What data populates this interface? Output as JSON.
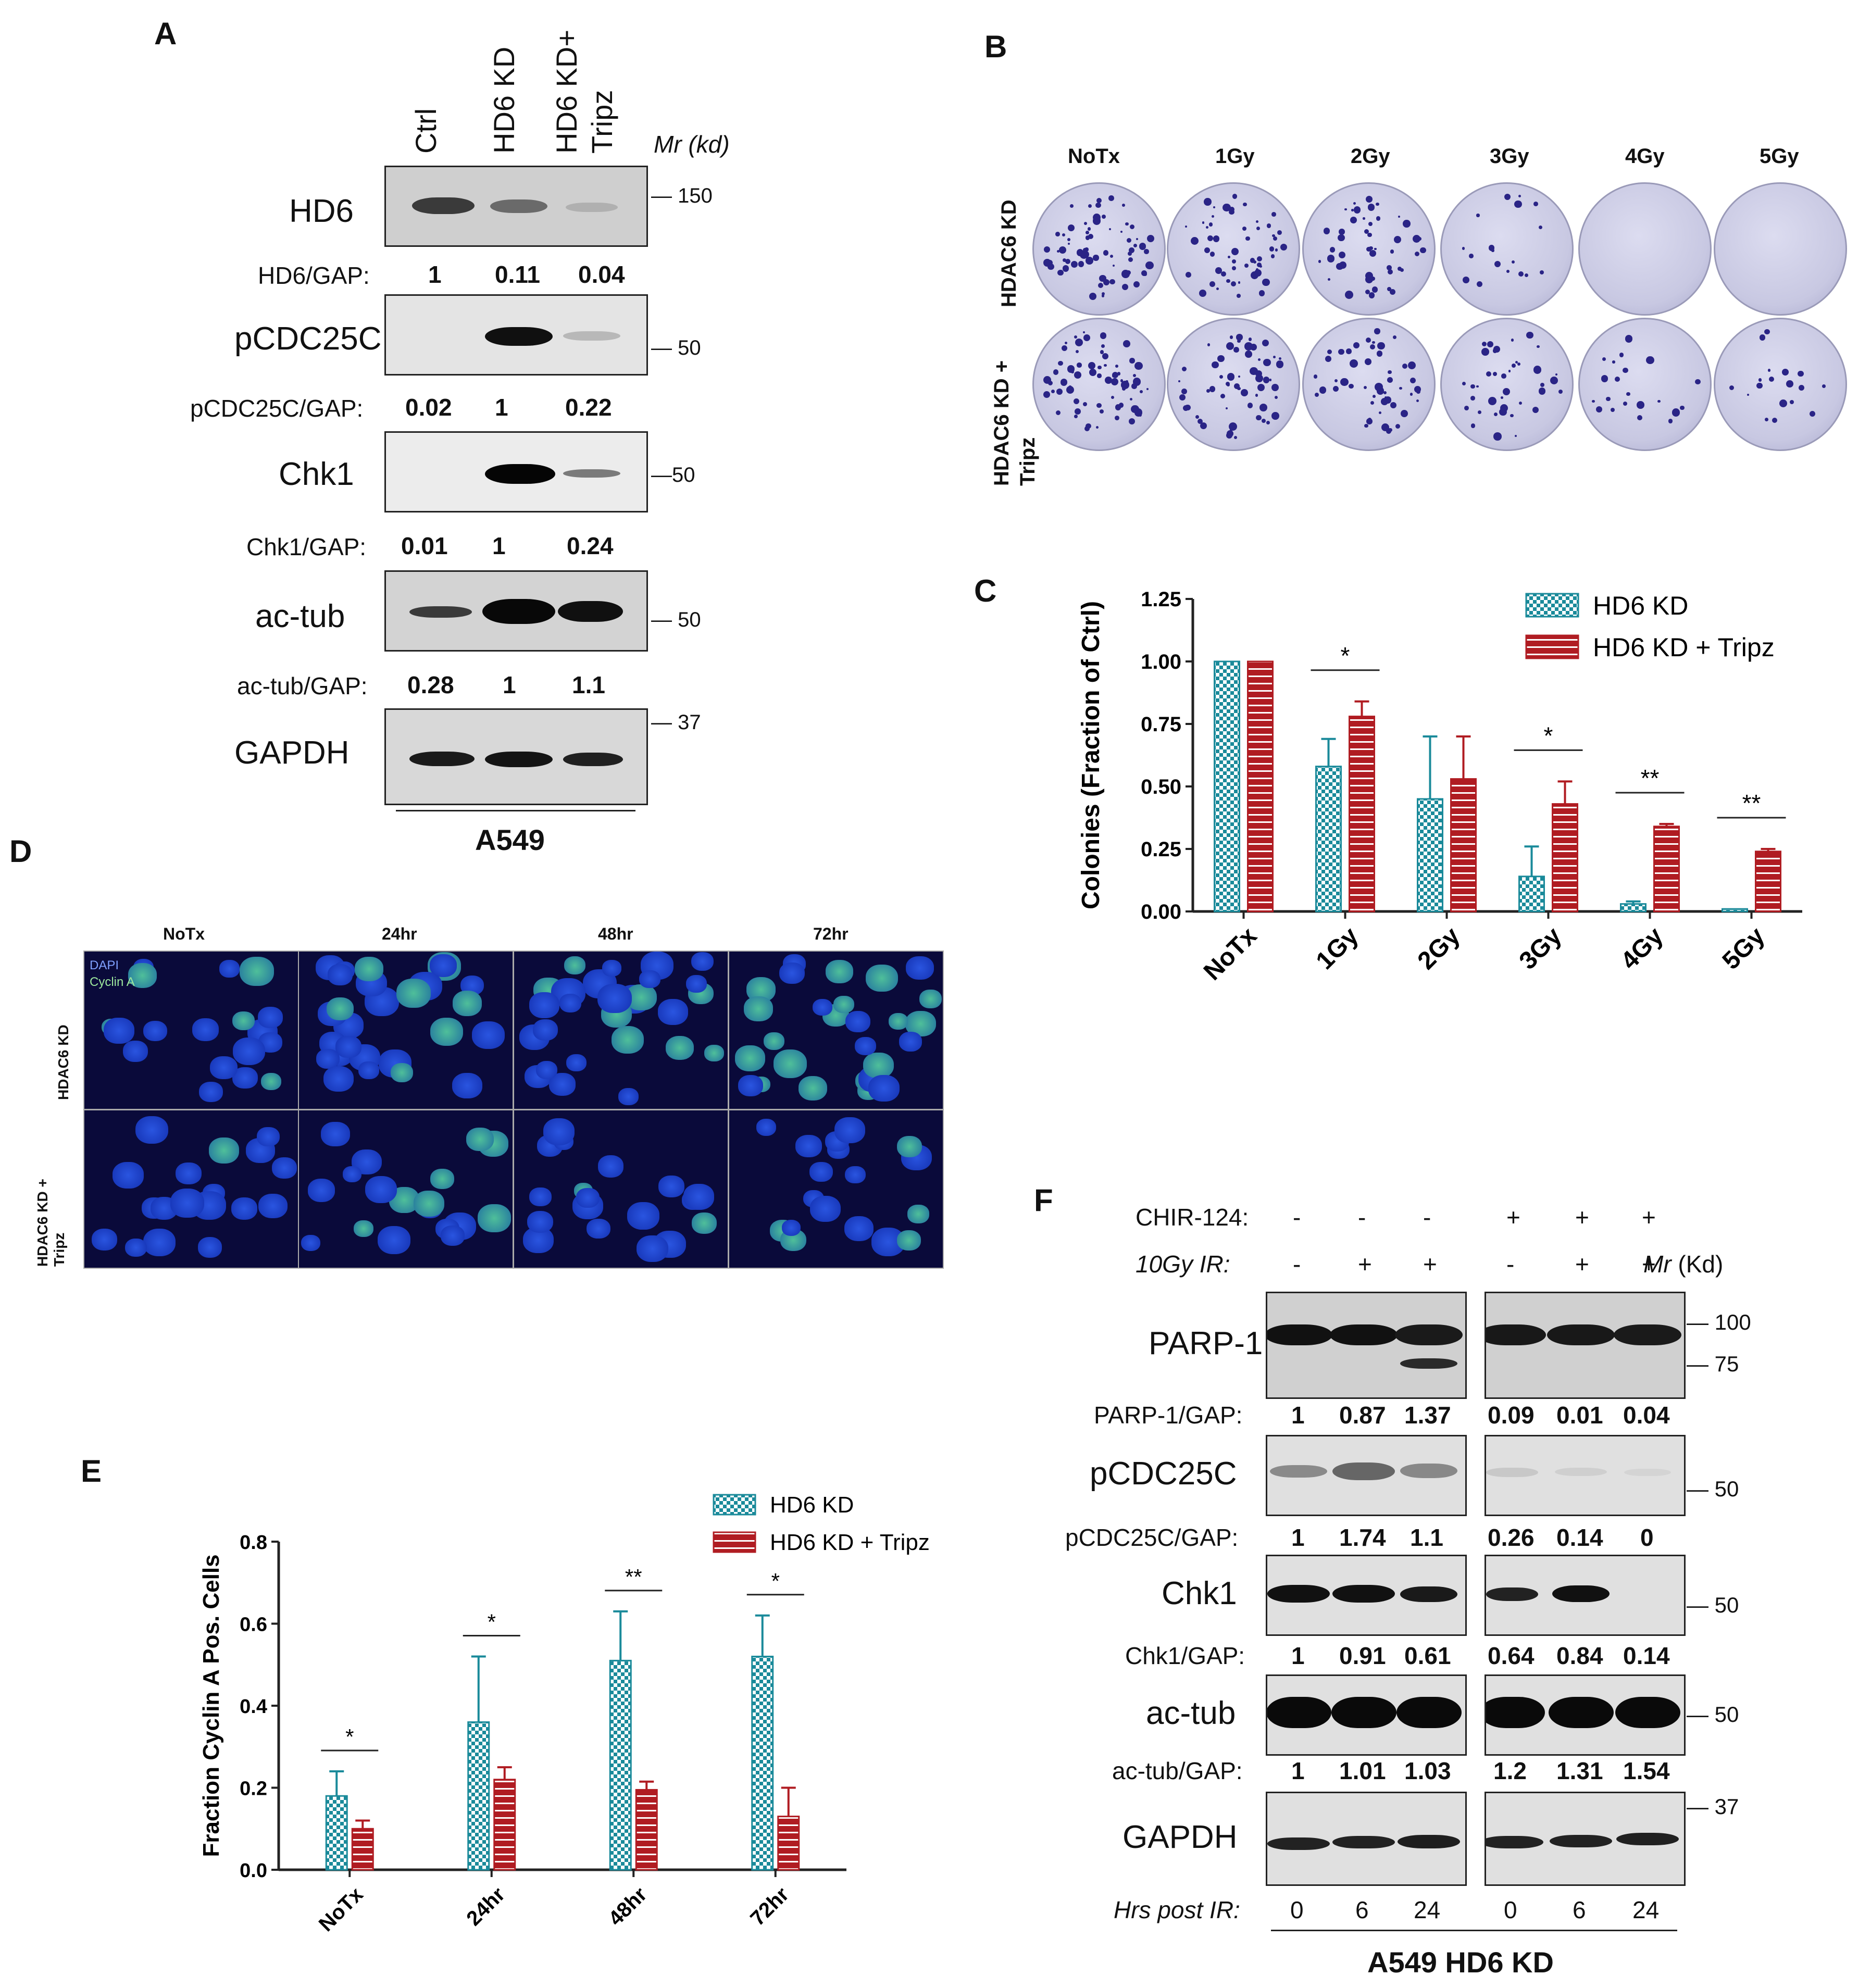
{
  "panel_labels": {
    "a": "A",
    "b": "B",
    "c": "C",
    "d": "D",
    "e": "E",
    "f": "F"
  },
  "panel_a": {
    "lanes": [
      "Ctrl",
      "HD6 KD",
      "HD6 KD+\nTripz"
    ],
    "lane_ctrl": "Ctrl",
    "lane_kd": "HD6 KD",
    "lane_kdt_1": "HD6 KD+",
    "lane_kdt_2": "Tripz",
    "mr_header": "Mr (kd)",
    "rows": [
      {
        "protein": "HD6",
        "mr": "150",
        "ratio_label": "HD6/GAP:",
        "ratios": [
          "1",
          "0.11",
          "0.04"
        ]
      },
      {
        "protein": "pCDC25C",
        "mr": "50",
        "ratio_label": "pCDC25C/GAP:",
        "ratios": [
          "0.02",
          "1",
          "0.22"
        ]
      },
      {
        "protein": "Chk1",
        "mr": "50",
        "ratio_label": "Chk1/GAP:",
        "ratios": [
          "0.01",
          "1",
          "0.24"
        ]
      },
      {
        "protein": "ac-tub",
        "mr": "50",
        "ratio_label": "ac-tub/GAP:",
        "ratios": [
          "0.28",
          "1",
          "1.1"
        ]
      },
      {
        "protein": "GAPDH",
        "mr": "37",
        "ratio_label": "",
        "ratios": []
      }
    ],
    "cell_line": "A549"
  },
  "panel_b": {
    "columns": [
      "NoTx",
      "1Gy",
      "2Gy",
      "3Gy",
      "4Gy",
      "5Gy"
    ],
    "rows": [
      "HDAC6 KD",
      "HDAC6 KD +\nTripz"
    ],
    "row1": "HDAC6 KD",
    "row2a": "HDAC6 KD +",
    "row2b": "Tripz"
  },
  "panel_c": {
    "chart_data": {
      "type": "bar",
      "categories": [
        "NoTx",
        "1Gy",
        "2Gy",
        "3Gy",
        "4Gy",
        "5Gy"
      ],
      "series": [
        {
          "name": "HD6 KD",
          "values": [
            1.0,
            0.58,
            0.45,
            0.14,
            0.03,
            0.01
          ],
          "errors": [
            0,
            0.11,
            0.25,
            0.12,
            0.01,
            0.0
          ],
          "color": "#1a8a9a",
          "pattern": "checker"
        },
        {
          "name": "HD6 KD + Tripz",
          "values": [
            1.0,
            0.78,
            0.53,
            0.43,
            0.34,
            0.24
          ],
          "errors": [
            0,
            0.06,
            0.17,
            0.09,
            0.01,
            0.01
          ],
          "color": "#b01c22",
          "pattern": "stripes"
        }
      ],
      "significance": [
        "",
        "*",
        "",
        "*",
        "**",
        "**"
      ],
      "ylabel": "Colonies (Fraction of Ctrl)",
      "xlabel": "",
      "ylim": [
        0,
        1.25
      ],
      "yticks": [
        "0.00",
        "0.25",
        "0.50",
        "0.75",
        "1.00",
        "1.25"
      ],
      "legend": "top-right"
    }
  },
  "panel_d": {
    "columns": [
      "NoTx",
      "24hr",
      "48hr",
      "72hr"
    ],
    "rows": [
      "HDAC6 KD",
      "HDAC6 KD +\nTripz"
    ],
    "row1": "HDAC6 KD",
    "row2a": "HDAC6 KD +",
    "row2b": "Tripz",
    "stain_dapi": "DAPI",
    "stain_cyclin": "Cyclin A"
  },
  "panel_e": {
    "chart_data": {
      "type": "bar",
      "categories": [
        "NoTx",
        "24hr",
        "48hr",
        "72hr"
      ],
      "series": [
        {
          "name": "HD6 KD",
          "values": [
            0.18,
            0.36,
            0.51,
            0.52
          ],
          "errors": [
            0.06,
            0.16,
            0.12,
            0.1
          ],
          "color": "#1a8a9a",
          "pattern": "checker"
        },
        {
          "name": "HD6 KD + Tripz",
          "values": [
            0.1,
            0.22,
            0.195,
            0.13
          ],
          "errors": [
            0.02,
            0.03,
            0.02,
            0.07
          ],
          "color": "#b01c22",
          "pattern": "stripes"
        }
      ],
      "significance": [
        "*",
        "*",
        "**",
        "*"
      ],
      "ylabel": "Fraction Cyclin A Pos. Cells",
      "xlabel": "",
      "ylim": [
        0,
        0.8
      ],
      "yticks": [
        "0.0",
        "0.2",
        "0.4",
        "0.6",
        "0.8"
      ],
      "legend": "top-right"
    }
  },
  "panel_f": {
    "chir_label": "CHIR-124:",
    "chir": [
      "-",
      "-",
      "-",
      "+",
      "+",
      "+"
    ],
    "ir_label": "10Gy IR:",
    "ir": [
      "-",
      "+",
      "+",
      "-",
      "+",
      "+"
    ],
    "mr_header_a": "Mr",
    "mr_header_b": " (Kd)",
    "rows": [
      {
        "protein": "PARP-1",
        "mr": [
          "100",
          "75"
        ],
        "ratio_label": "PARP-1/GAP:",
        "ratios": [
          "1",
          "0.87",
          "1.37",
          "0.09",
          "0.01",
          "0.04"
        ]
      },
      {
        "protein": "pCDC25C",
        "mr": [
          "50"
        ],
        "ratio_label": "pCDC25C/GAP:",
        "ratios": [
          "1",
          "1.74",
          "1.1",
          "0.26",
          "0.14",
          "0"
        ]
      },
      {
        "protein": "Chk1",
        "mr": [
          "50"
        ],
        "ratio_label": "Chk1/GAP:",
        "ratios": [
          "1",
          "0.91",
          "0.61",
          "0.64",
          "0.84",
          "0.14"
        ]
      },
      {
        "protein": "ac-tub",
        "mr": [
          "50"
        ],
        "ratio_label": "ac-tub/GAP:",
        "ratios": [
          "1",
          "1.01",
          "1.03",
          "1.2",
          "1.31",
          "1.54"
        ]
      },
      {
        "protein": "GAPDH",
        "mr": [
          "37"
        ],
        "ratio_label": "",
        "ratios": []
      }
    ],
    "hrs_label": "Hrs post IR:",
    "hrs": [
      "0",
      "6",
      "24",
      "0",
      "6",
      "24"
    ],
    "cell_line": "A549 HD6 KD"
  }
}
